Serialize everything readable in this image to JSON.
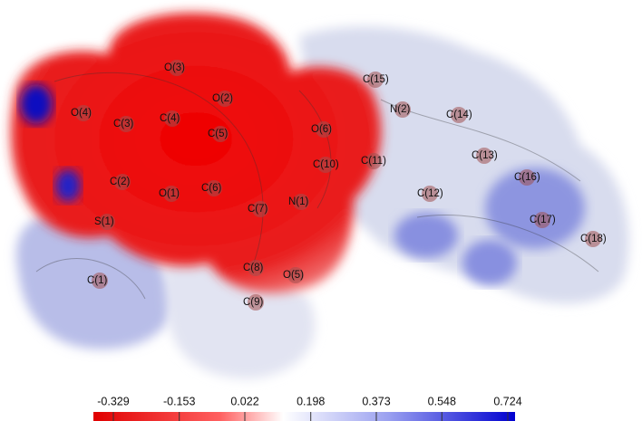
{
  "atom_labels": [
    "O(4)",
    "C(3)",
    "C(4)",
    "O(3)",
    "O(2)",
    "C(5)",
    "C(2)",
    "O(1)",
    "C(6)",
    "S(1)",
    "C(7)",
    "N(1)",
    "O(6)",
    "C(10)",
    "C(11)",
    "C(15)",
    "N(2)",
    "C(14)",
    "C(13)",
    "C(12)",
    "C(16)",
    "C(17)",
    "C(18)",
    "C(1)",
    "C(8)",
    "O(5)",
    "C(9)"
  ],
  "colorbar": {
    "ticks": [
      -0.329,
      -0.153,
      0.022,
      0.198,
      0.373,
      0.548,
      0.724
    ]
  }
}
